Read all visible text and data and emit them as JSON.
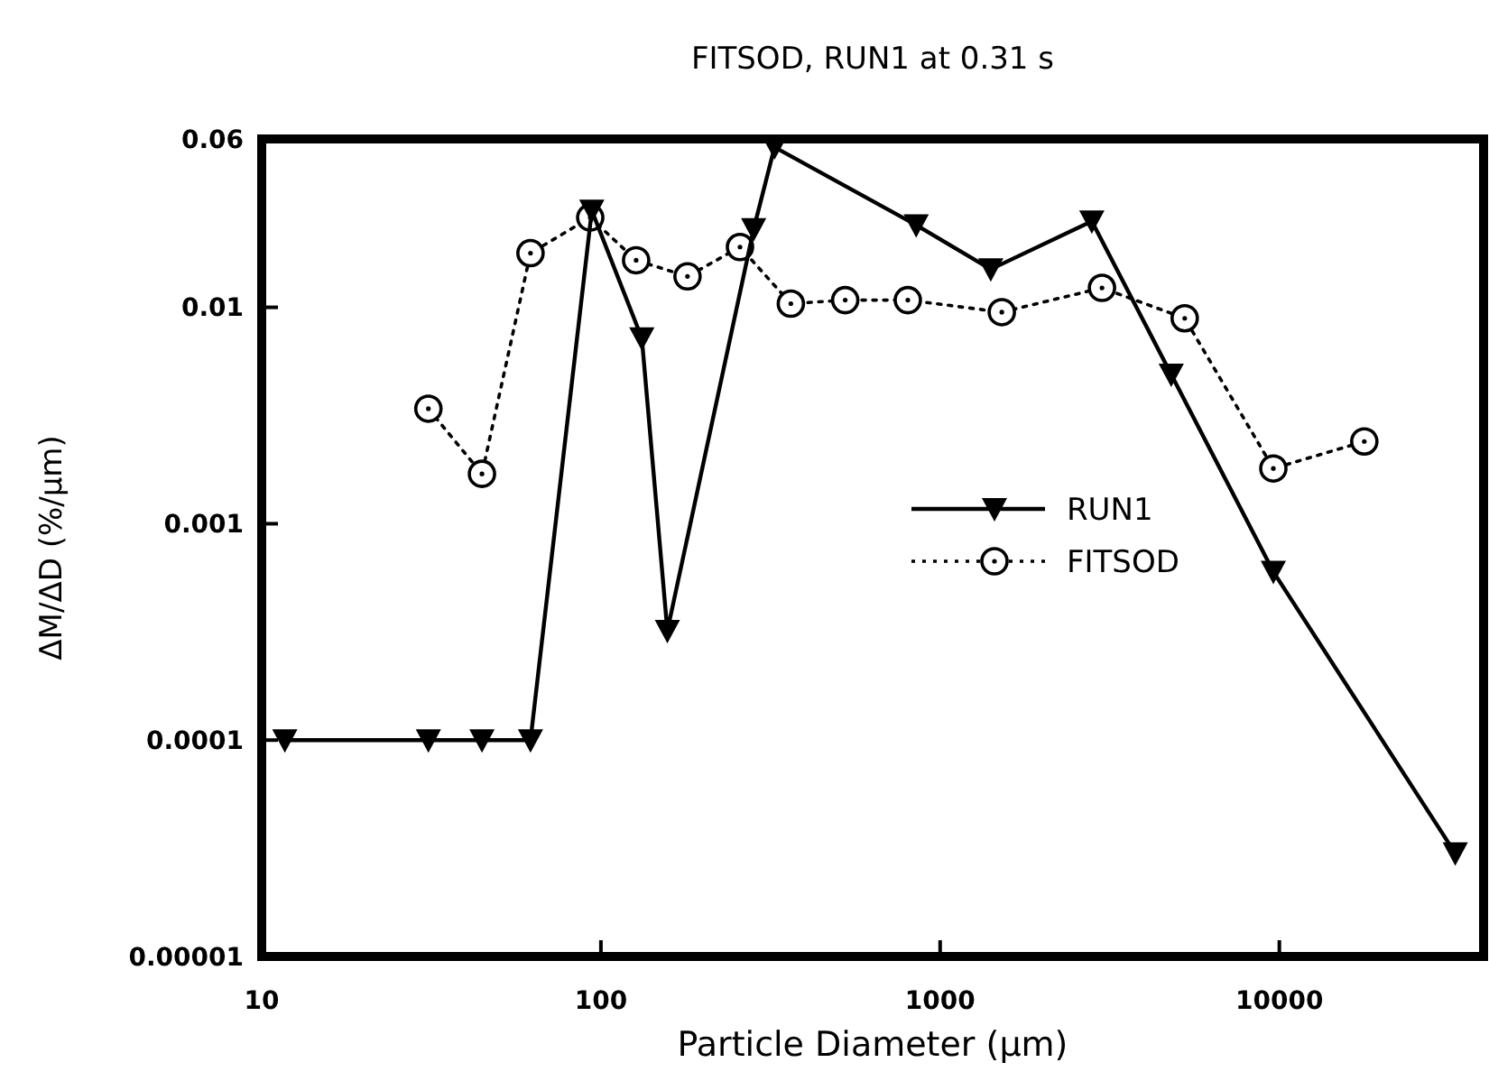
{
  "chart_data": {
    "type": "line",
    "title": "FITSOD, RUN1 at 0.31 s",
    "xlabel": "Particle Diameter (μm)",
    "ylabel": "ΔM/ΔD (%/μm)",
    "log": "xy",
    "xlim": [
      10,
      40000
    ],
    "ylim": [
      1e-05,
      0.06
    ],
    "xticks": [
      10,
      100,
      1000,
      10000
    ],
    "yticks": [
      {
        "value": 1e-05,
        "label": "0.00001"
      },
      0.0001,
      0.001,
      0.01,
      0.06
    ],
    "grid": false,
    "legend": "right",
    "series": [
      {
        "name": "RUN1",
        "color": "#000000",
        "marker": "triangle",
        "line_style": "solid",
        "x": [
          11.7,
          31,
          44.6,
          62,
          94,
          132,
          157,
          282,
          325,
          850,
          1410,
          2800,
          4800,
          9600,
          33000
        ],
        "values": [
          0.0001,
          0.0001,
          0.0001,
          0.0001,
          0.028,
          0.0072,
          0.00032,
          0.023,
          0.055,
          0.024,
          0.015,
          0.025,
          0.0049,
          0.0006,
          3e-05
        ]
      },
      {
        "name": "FITSOD",
        "color": "#000000",
        "marker": "circle",
        "line_style": "dotted",
        "x": [
          31,
          44.6,
          62,
          93,
          127,
          180,
          257,
          363,
          525,
          803,
          1520,
          3000,
          5260,
          9600,
          17800
        ],
        "values": [
          0.0034,
          0.0017,
          0.0178,
          0.026,
          0.0165,
          0.0139,
          0.019,
          0.0104,
          0.0108,
          0.0108,
          0.0095,
          0.0123,
          0.0089,
          0.0018,
          0.0024
        ]
      }
    ]
  }
}
